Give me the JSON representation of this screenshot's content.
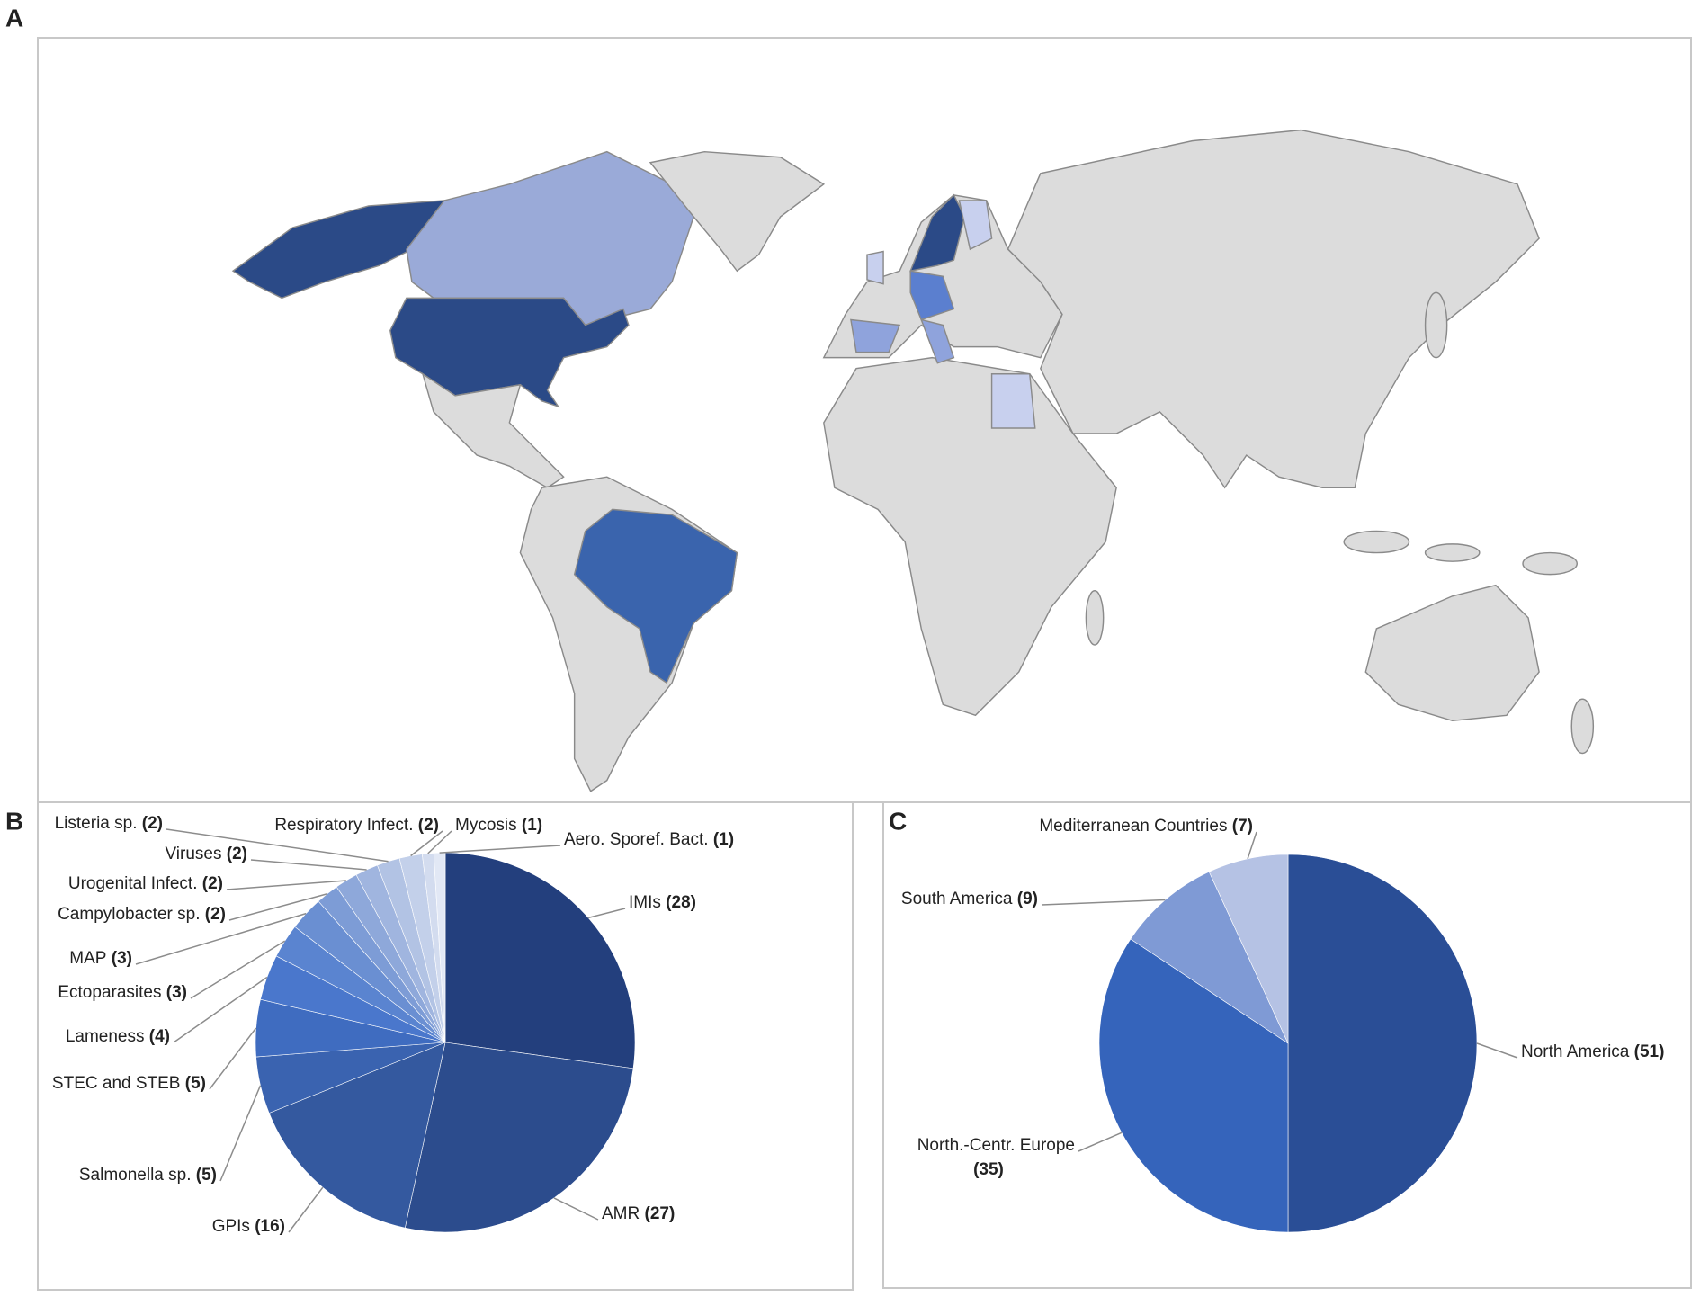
{
  "map": {
    "panel_label": "A"
  },
  "chart_data": [
    {
      "type": "pie",
      "panel_label": "B",
      "categories": [
        "IMIs",
        "AMR",
        "GPIs",
        "Salmonella sp.",
        "STEC and STEB",
        "Lameness",
        "Ectoparasites",
        "MAP",
        "Campylobacter sp.",
        "Urogenital Infect.",
        "Viruses",
        "Listeria sp.",
        "Respiratory Infect.",
        "Mycosis",
        "Aero. Sporef. Bact."
      ],
      "values": [
        28,
        27,
        16,
        5,
        5,
        4,
        3,
        3,
        2,
        2,
        2,
        2,
        2,
        1,
        1
      ],
      "value_labels": [
        "(28)",
        "(27)",
        "(16)",
        "(5)",
        "(5)",
        "(4)",
        "(3)",
        "(3)",
        "(2)",
        "(2)",
        "(2)",
        "(2)",
        "(2)",
        "(1)",
        "(1)"
      ],
      "colors": [
        "#233f7d",
        "#2c4c8d",
        "#34599f",
        "#3a63b0",
        "#3f6cc0",
        "#4a77cc",
        "#5a84d0",
        "#6a8fd2",
        "#7d9cd6",
        "#8ea8da",
        "#a0b5df",
        "#b2c3e4",
        "#c3d0ea",
        "#d3dcef",
        "#e2e8f5"
      ]
    },
    {
      "type": "pie",
      "panel_label": "C",
      "categories": [
        "North America",
        "North.-Centr. Europe",
        "South America",
        "Mediterranean Countries"
      ],
      "values": [
        51,
        35,
        9,
        7
      ],
      "value_labels": [
        "(51)",
        "(35)",
        "(9)",
        "(7)"
      ],
      "colors": [
        "#2a4e96",
        "#3564bb",
        "#7f9ad5",
        "#b5c2e4"
      ]
    }
  ]
}
